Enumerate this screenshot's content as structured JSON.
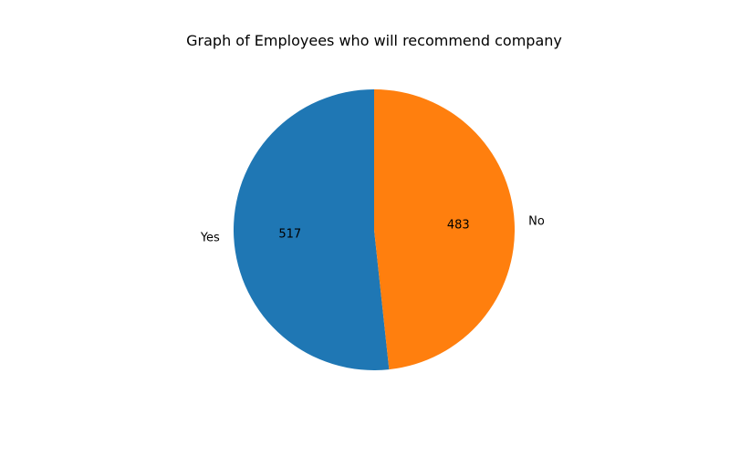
{
  "chart_data": {
    "type": "pie",
    "title": "Graph of Employees who will recommend company",
    "labels": [
      "Yes",
      "No"
    ],
    "values": [
      517,
      483
    ],
    "value_labels": [
      "517",
      "483"
    ],
    "colors": [
      "#1f77b4",
      "#ff7f0e"
    ],
    "start_angle_deg": 90,
    "direction": "counterclockwise",
    "legend": "none"
  }
}
